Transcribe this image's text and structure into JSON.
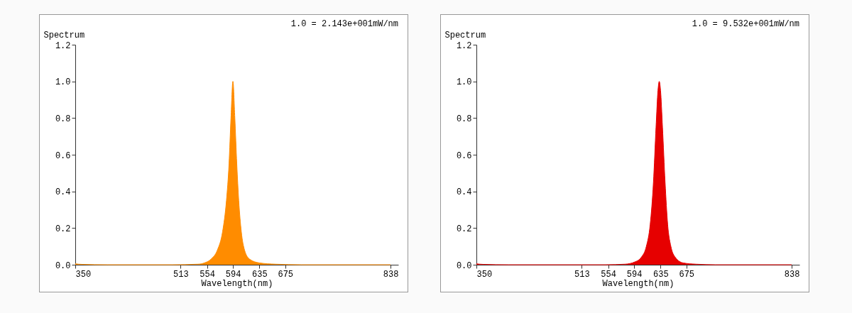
{
  "chart_data": [
    {
      "type": "area",
      "ylabel": "Spectrum",
      "xlabel": "Wavelength(nm)",
      "annotations": [
        "1.0 = 2.143e+001mW/nm"
      ],
      "xlim": [
        350,
        850
      ],
      "xticks": [
        350,
        513,
        554,
        594,
        635,
        675,
        838
      ],
      "ylim": [
        0,
        1.2
      ],
      "yticks": [
        {
          "value": 0,
          "label": "0.0"
        },
        {
          "value": 0.2,
          "label": "0.2"
        },
        {
          "value": 0.4,
          "label": "0.4"
        },
        {
          "value": 0.6,
          "label": "0.6"
        },
        {
          "value": 0.8,
          "label": "0.8"
        },
        {
          "value": 1.0,
          "label": "1.0"
        },
        {
          "value": 1.2,
          "label": "1.2"
        }
      ],
      "grid": false,
      "series": [
        {
          "color": "#ff8c00",
          "x": [
            350,
            360,
            400,
            500,
            540,
            550,
            560,
            570,
            578,
            584,
            588,
            591,
            594,
            597,
            600,
            603,
            607,
            612,
            620,
            635,
            660,
            700,
            838
          ],
          "values": [
            0.005,
            0.002,
            0,
            0,
            0.003,
            0.01,
            0.03,
            0.08,
            0.18,
            0.35,
            0.55,
            0.8,
            1.0,
            0.8,
            0.55,
            0.35,
            0.18,
            0.08,
            0.03,
            0.01,
            0.003,
            0,
            0
          ]
        }
      ]
    },
    {
      "type": "area",
      "ylabel": "Spectrum",
      "xlabel": "Wavelength(nm)",
      "annotations": [
        "1.0 = 9.532e+001mW/nm"
      ],
      "xlim": [
        350,
        850
      ],
      "xticks": [
        350,
        513,
        554,
        594,
        635,
        675,
        838
      ],
      "ylim": [
        0,
        1.2
      ],
      "yticks": [
        {
          "value": 0,
          "label": "0.0"
        },
        {
          "value": 0.2,
          "label": "0.2"
        },
        {
          "value": 0.4,
          "label": "0.4"
        },
        {
          "value": 0.6,
          "label": "0.6"
        },
        {
          "value": 0.8,
          "label": "0.8"
        },
        {
          "value": 1.0,
          "label": "1.0"
        },
        {
          "value": 1.2,
          "label": "1.2"
        }
      ],
      "grid": false,
      "series": [
        {
          "color": "#e60000",
          "x": [
            350,
            360,
            400,
            550,
            580,
            595,
            605,
            613,
            619,
            624,
            628,
            631,
            633,
            635,
            638,
            642,
            646,
            651,
            658,
            670,
            690,
            720,
            838
          ],
          "values": [
            0.005,
            0.002,
            0,
            0,
            0.003,
            0.015,
            0.04,
            0.1,
            0.22,
            0.45,
            0.75,
            0.95,
            1.0,
            0.95,
            0.75,
            0.45,
            0.22,
            0.1,
            0.04,
            0.01,
            0.003,
            0,
            0
          ]
        }
      ]
    }
  ]
}
